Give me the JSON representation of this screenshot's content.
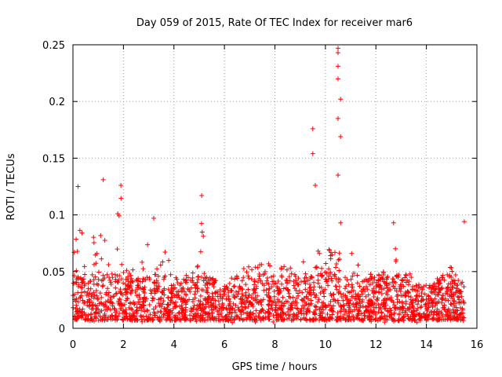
{
  "chart_data": {
    "type": "scatter",
    "title": "Day 059 of 2015, Rate Of TEC Index for receiver mar6",
    "xlabel": "GPS time / hours",
    "ylabel": "ROTI / TECUs",
    "xlim": [
      0,
      16
    ],
    "ylim": [
      0,
      0.25
    ],
    "x_ticks": [
      0,
      2,
      4,
      6,
      8,
      10,
      12,
      14,
      16
    ],
    "y_ticks": [
      0,
      0.05,
      0.1,
      0.15,
      0.2,
      0.25
    ],
    "x_tick_labels": [
      "0",
      "2",
      "4",
      "6",
      "8",
      "10",
      "12",
      "14",
      "16"
    ],
    "y_tick_labels": [
      "0",
      "0.05",
      "0.1",
      "0.15",
      "0.2",
      "0.25"
    ],
    "grid": true,
    "marker": "+",
    "color": "#ff0000",
    "series": [
      {
        "name": "ROTI",
        "x_range": [
          0,
          15.5
        ],
        "baseline_band": [
          0.005,
          0.05
        ],
        "notable_points": [
          {
            "x": 0.2,
            "y": 0.125
          },
          {
            "x": 1.2,
            "y": 0.131
          },
          {
            "x": 1.9,
            "y": 0.126
          },
          {
            "x": 3.2,
            "y": 0.097
          },
          {
            "x": 5.1,
            "y": 0.117
          },
          {
            "x": 9.5,
            "y": 0.176
          },
          {
            "x": 9.5,
            "y": 0.154
          },
          {
            "x": 9.6,
            "y": 0.126
          },
          {
            "x": 10.5,
            "y": 0.247
          },
          {
            "x": 10.5,
            "y": 0.243
          },
          {
            "x": 10.5,
            "y": 0.231
          },
          {
            "x": 10.5,
            "y": 0.22
          },
          {
            "x": 10.6,
            "y": 0.202
          },
          {
            "x": 10.5,
            "y": 0.185
          },
          {
            "x": 10.6,
            "y": 0.169
          },
          {
            "x": 10.5,
            "y": 0.135
          },
          {
            "x": 12.7,
            "y": 0.093
          },
          {
            "x": 15.5,
            "y": 0.094
          }
        ]
      }
    ]
  }
}
